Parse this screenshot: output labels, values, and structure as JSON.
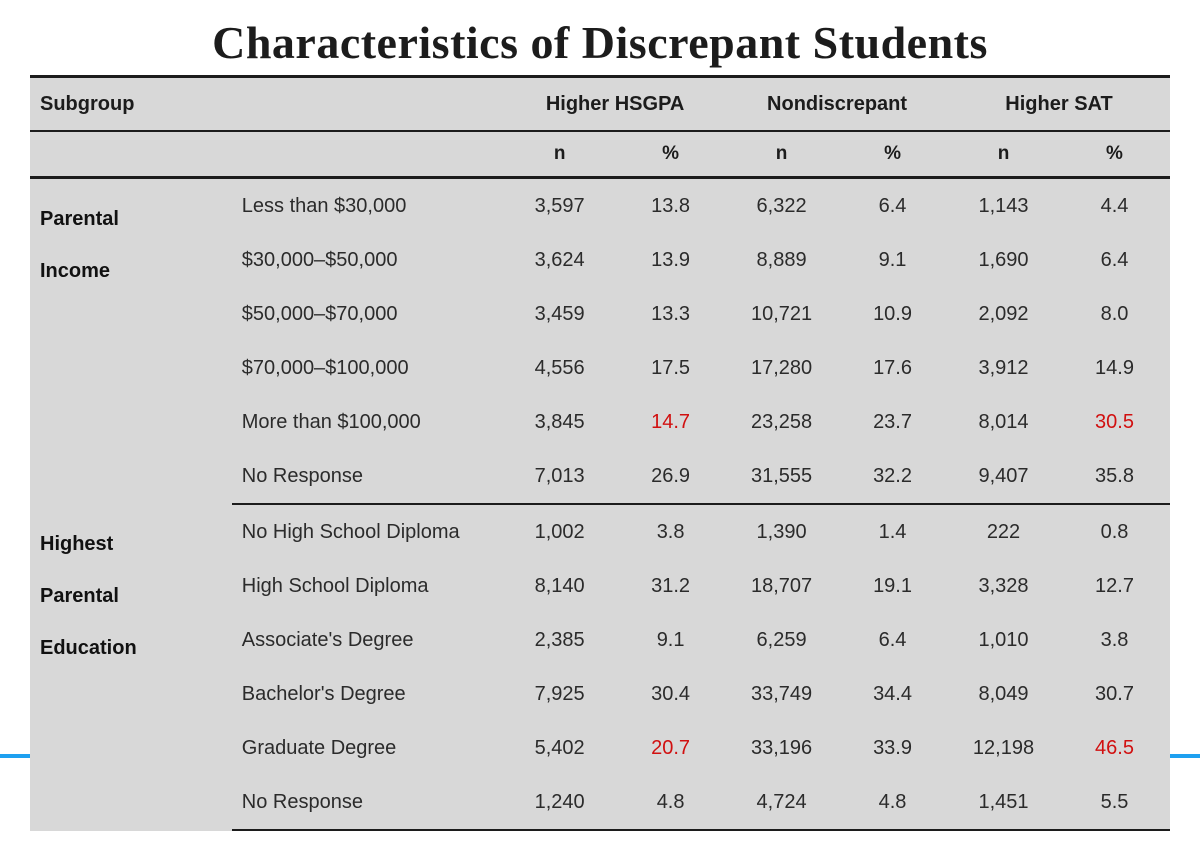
{
  "title": "Characteristics of Discrepant Students",
  "type": "table",
  "background_color": "#d8d8d8",
  "border_color": "#1c1c1c",
  "highlight_color": "#d11010",
  "accent_dash_color": "#1ea0f0",
  "title_fontsize": 46,
  "header_fontsize": 20,
  "cell_fontsize": 20,
  "columns": {
    "subgroup": "Subgroup",
    "groups": [
      {
        "label": "Higher HSGPA",
        "sub": [
          "n",
          "%"
        ]
      },
      {
        "label": "Nondiscrepant",
        "sub": [
          "n",
          "%"
        ]
      },
      {
        "label": "Higher SAT",
        "sub": [
          "n",
          "%"
        ]
      }
    ]
  },
  "sections": [
    {
      "label": "Parental Income",
      "label_lines": [
        "Parental",
        "Income"
      ],
      "rows": [
        {
          "category": "Less than $30,000",
          "vals": [
            "3,597",
            "13.8",
            "6,322",
            "6.4",
            "1,143",
            "4.4"
          ],
          "hl": []
        },
        {
          "category": "$30,000–$50,000",
          "vals": [
            "3,624",
            "13.9",
            "8,889",
            "9.1",
            "1,690",
            "6.4"
          ],
          "hl": []
        },
        {
          "category": "$50,000–$70,000",
          "vals": [
            "3,459",
            "13.3",
            "10,721",
            "10.9",
            "2,092",
            "8.0"
          ],
          "hl": []
        },
        {
          "category": "$70,000–$100,000",
          "vals": [
            "4,556",
            "17.5",
            "17,280",
            "17.6",
            "3,912",
            "14.9"
          ],
          "hl": []
        },
        {
          "category": "More than $100,000",
          "vals": [
            "3,845",
            "14.7",
            "23,258",
            "23.7",
            "8,014",
            "30.5"
          ],
          "hl": [
            1,
            5
          ]
        },
        {
          "category": "No Response",
          "vals": [
            "7,013",
            "26.9",
            "31,555",
            "32.2",
            "9,407",
            "35.8"
          ],
          "hl": []
        }
      ]
    },
    {
      "label": "Highest Parental Education",
      "label_lines": [
        "Highest",
        "Parental",
        "Education"
      ],
      "rows": [
        {
          "category": "No High School Diploma",
          "vals": [
            "1,002",
            "3.8",
            "1,390",
            "1.4",
            "222",
            "0.8"
          ],
          "hl": []
        },
        {
          "category": "High School Diploma",
          "vals": [
            "8,140",
            "31.2",
            "18,707",
            "19.1",
            "3,328",
            "12.7"
          ],
          "hl": []
        },
        {
          "category": "Associate's Degree",
          "vals": [
            "2,385",
            "9.1",
            "6,259",
            "6.4",
            "1,010",
            "3.8"
          ],
          "hl": []
        },
        {
          "category": "Bachelor's Degree",
          "vals": [
            "7,925",
            "30.4",
            "33,749",
            "34.4",
            "8,049",
            "30.7"
          ],
          "hl": []
        },
        {
          "category": "Graduate Degree",
          "vals": [
            "5,402",
            "20.7",
            "33,196",
            "33.9",
            "12,198",
            "46.5"
          ],
          "hl": [
            1,
            5
          ]
        },
        {
          "category": "No Response",
          "vals": [
            "1,240",
            "4.8",
            "4,724",
            "4.8",
            "1,451",
            "5.5"
          ],
          "hl": []
        }
      ]
    }
  ]
}
